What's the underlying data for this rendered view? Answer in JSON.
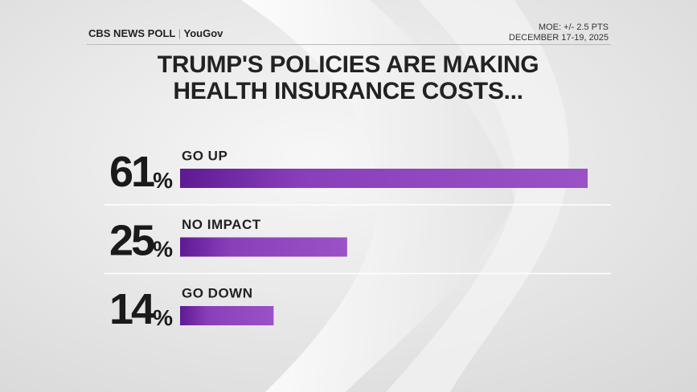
{
  "header": {
    "brand": "CBS NEWS POLL",
    "partner": "YouGov",
    "moe": "MOE: +/- 2.5 PTS",
    "dates": "DECEMBER 17-19, 2025"
  },
  "chart_data": {
    "type": "bar",
    "orientation": "horizontal",
    "title": "TRUMP'S POLICIES ARE MAKING HEALTH INSURANCE COSTS...",
    "categories": [
      "GO UP",
      "NO IMPACT",
      "GO DOWN"
    ],
    "values": [
      61,
      25,
      14
    ],
    "value_labels": [
      "61%",
      "25%",
      "14%"
    ],
    "color": "#8a3fba"
  }
}
